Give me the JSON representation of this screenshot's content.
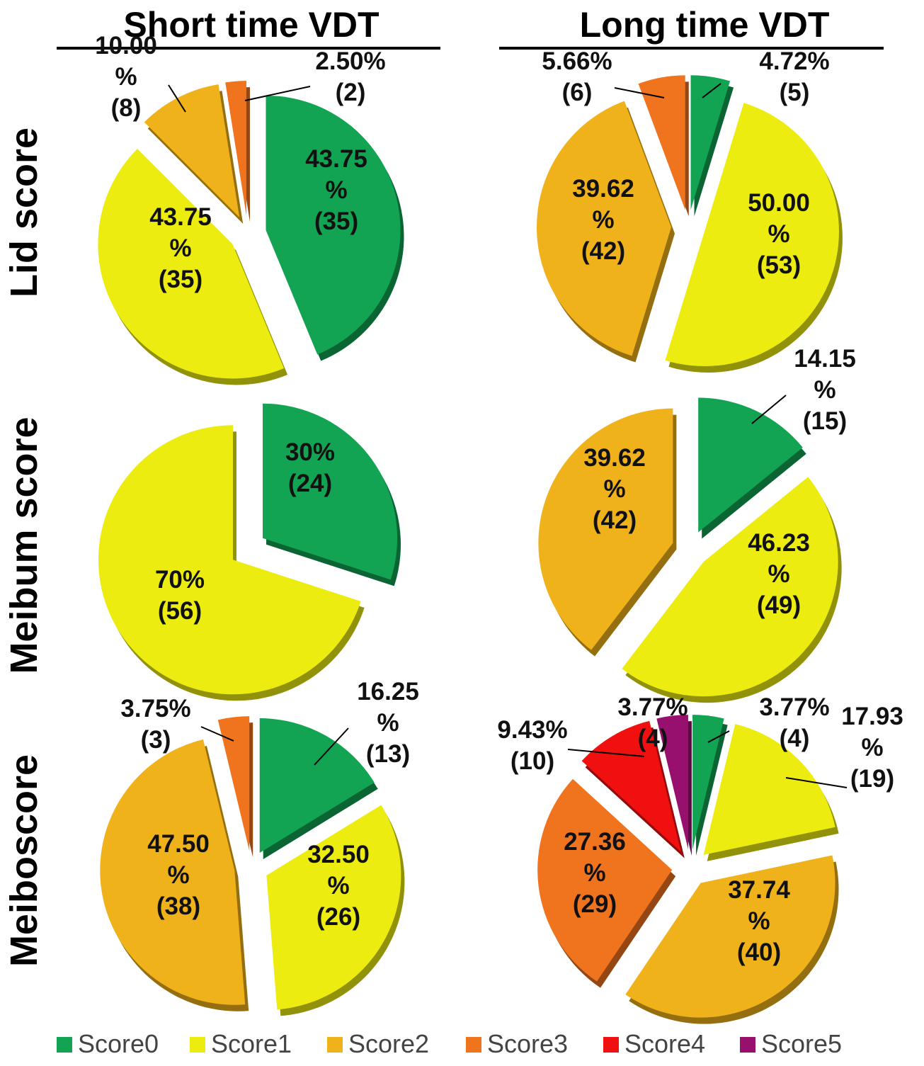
{
  "colors": {
    "Score0": "#12a353",
    "Score1": "#ecec10",
    "Score2": "#f0b21a",
    "Score3": "#f0731e",
    "Score4": "#f01010",
    "Score5": "#98106e"
  },
  "column_titles": [
    "Short time VDT",
    "Long time VDT"
  ],
  "row_titles": [
    "Lid score",
    "Meibum score",
    "Meiboscore"
  ],
  "legend": [
    "Score0",
    "Score1",
    "Score2",
    "Score3",
    "Score4",
    "Score5"
  ],
  "chart_data": [
    {
      "type": "pie",
      "column": "Short time VDT",
      "row": "Lid score",
      "categories": [
        "Score0",
        "Score1",
        "Score2",
        "Score3"
      ],
      "values": [
        43.75,
        43.75,
        10.0,
        2.5
      ],
      "counts": [
        35,
        35,
        8,
        2
      ],
      "labels": [
        [
          "43.75",
          "%",
          "(35)"
        ],
        [
          "43.75",
          "%",
          "(35)"
        ],
        [
          "10.00",
          "%",
          "(8)"
        ],
        [
          "2.50%",
          "(2)"
        ]
      ]
    },
    {
      "type": "pie",
      "column": "Long time VDT",
      "row": "Lid score",
      "categories": [
        "Score0",
        "Score1",
        "Score2",
        "Score3"
      ],
      "values": [
        4.72,
        50.0,
        39.62,
        5.66
      ],
      "counts": [
        5,
        53,
        42,
        6
      ],
      "labels": [
        [
          "4.72%",
          "(5)"
        ],
        [
          "50.00",
          "%",
          "(53)"
        ],
        [
          "39.62",
          "%",
          "(42)"
        ],
        [
          "5.66%",
          "(6)"
        ]
      ]
    },
    {
      "type": "pie",
      "column": "Short time VDT",
      "row": "Meibum score",
      "categories": [
        "Score0",
        "Score1"
      ],
      "values": [
        30,
        70
      ],
      "counts": [
        24,
        56
      ],
      "labels": [
        [
          "30%",
          "(24)"
        ],
        [
          "70%",
          "(56)"
        ]
      ]
    },
    {
      "type": "pie",
      "column": "Long time VDT",
      "row": "Meibum score",
      "categories": [
        "Score0",
        "Score1",
        "Score2"
      ],
      "values": [
        14.15,
        46.23,
        39.62
      ],
      "counts": [
        15,
        49,
        42
      ],
      "labels": [
        [
          "14.15",
          "%",
          "(15)"
        ],
        [
          "46.23",
          "%",
          "(49)"
        ],
        [
          "39.62",
          "%",
          "(42)"
        ]
      ]
    },
    {
      "type": "pie",
      "column": "Short time VDT",
      "row": "Meiboscore",
      "categories": [
        "Score0",
        "Score1",
        "Score2",
        "Score3"
      ],
      "values": [
        16.25,
        32.5,
        47.5,
        3.75
      ],
      "counts": [
        13,
        26,
        38,
        3
      ],
      "labels": [
        [
          "16.25",
          "%",
          "(13)"
        ],
        [
          "32.50",
          "%",
          "(26)"
        ],
        [
          "47.50",
          "%",
          "(38)"
        ],
        [
          "3.75%",
          "(3)"
        ]
      ]
    },
    {
      "type": "pie",
      "column": "Long time VDT",
      "row": "Meiboscore",
      "categories": [
        "Score0",
        "Score1",
        "Score2",
        "Score3",
        "Score4",
        "Score5"
      ],
      "values": [
        3.77,
        17.93,
        37.74,
        27.36,
        9.43,
        3.77
      ],
      "counts": [
        4,
        19,
        40,
        29,
        10,
        4
      ],
      "labels": [
        [
          "3.77%",
          "(4)"
        ],
        [
          "17.93",
          "%",
          "(19)"
        ],
        [
          "37.74",
          "%",
          "(40)"
        ],
        [
          "27.36",
          "%",
          "(29)"
        ],
        [
          "9.43%",
          "(10)"
        ],
        [
          "3.77%",
          "(4)"
        ]
      ]
    }
  ]
}
